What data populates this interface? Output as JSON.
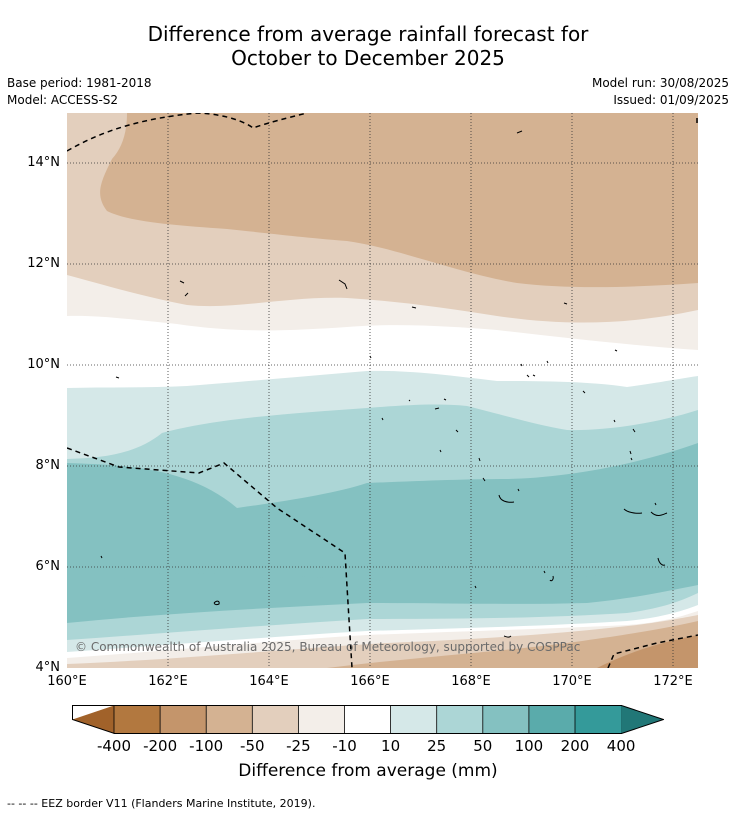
{
  "title_line1": "Difference from average rainfall forecast for",
  "title_line2": "October to December 2025",
  "base_period": "Base period: 1981-2018",
  "model": "Model: ACCESS-S2",
  "model_run": "Model run: 30/08/2025",
  "issued": "Issued: 01/09/2025",
  "lat_labels": [
    "14°N",
    "12°N",
    "10°N",
    "8°N",
    "6°N",
    "4°N"
  ],
  "lon_labels": [
    "160°E",
    "162°E",
    "164°E",
    "166°E",
    "168°E",
    "170°E",
    "172°E"
  ],
  "copyright": "© Commonwealth of Australia 2025, Bureau of Meteorology, supported by COSPPac",
  "colorbar": {
    "labels": [
      "-400",
      "-200",
      "-100",
      "-50",
      "-25",
      "-10",
      "10",
      "25",
      "50",
      "100",
      "200",
      "400"
    ],
    "colors": [
      "#a1622a",
      "#b2783f",
      "#c4956b",
      "#d4b292",
      "#e3cfbd",
      "#f3eee9",
      "#ffffff",
      "#d5e8e8",
      "#acd6d6",
      "#84c1c1",
      "#5aabab",
      "#349a9a",
      "#217777"
    ],
    "title": "Difference from average (mm)"
  },
  "footnote": "--  --  -- EEZ border V11 (Flanders Marine Institute, 2019)."
}
